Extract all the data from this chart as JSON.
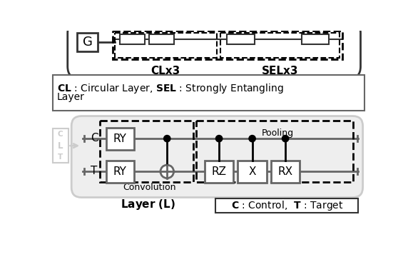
{
  "bg_color": "#ffffff",
  "dark_gray": "#333333",
  "mid_gray": "#666666",
  "light_gray": "#aaaaaa",
  "lighter_gray": "#cccccc",
  "fill_gray": "#eeeeee",
  "black": "#000000",
  "white": "#ffffff",
  "label_G": "G",
  "label_CLx3": "CLx3",
  "label_SELx3": "SELx3",
  "label_RY": "RY",
  "label_RZ": "RZ",
  "label_X": "X",
  "label_RX": "RX",
  "label_Convolution": "Convolution",
  "label_Pooling": "Pooling",
  "label_C": "C",
  "label_T": "T",
  "label_Layer": "Layer (L)",
  "clt_labels": [
    "C",
    "L",
    "T"
  ],
  "legend_bold1": "CL",
  "legend_text1": " : Circular Layer, ",
  "legend_bold2": "SEL",
  "legend_text2": " : Strongly Entangling",
  "legend_line2": "Layer",
  "ctrl_bold1": "C",
  "ctrl_text1": " : Control, ",
  "ctrl_bold2": "T",
  "ctrl_text2": " : Target"
}
